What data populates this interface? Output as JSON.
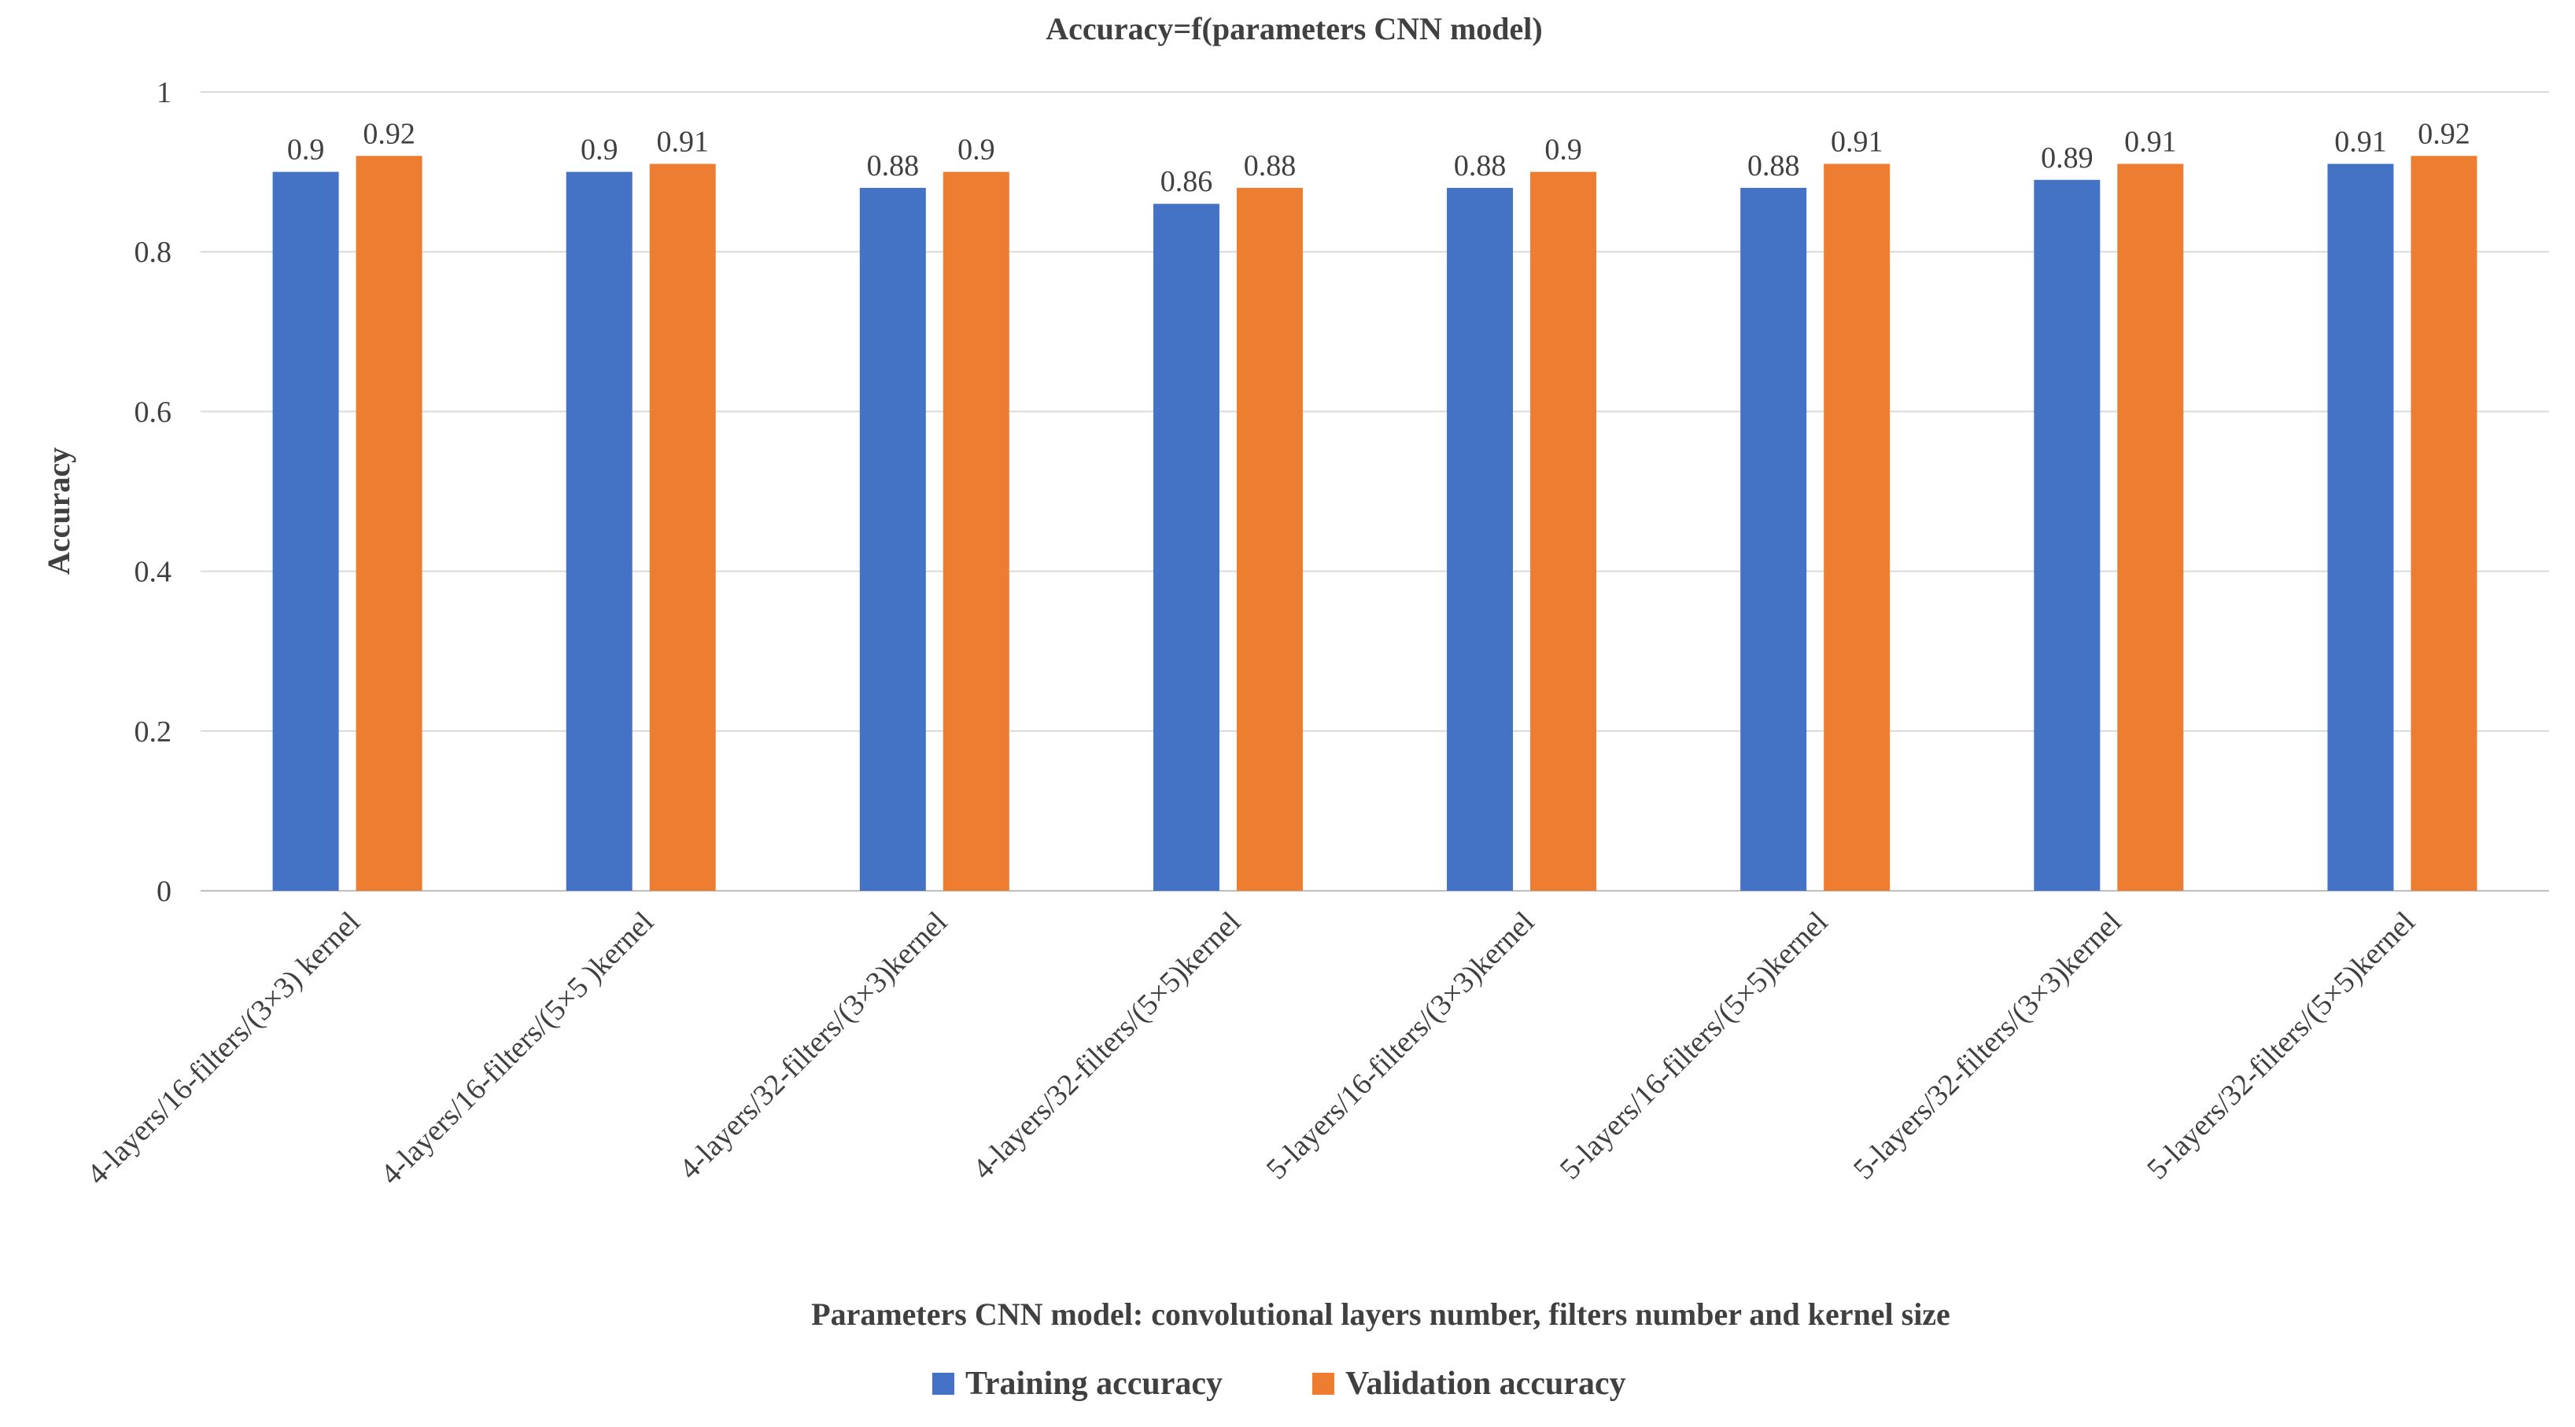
{
  "chart_data": {
    "type": "bar",
    "title": "Accuracy=f(parameters CNN model)",
    "xlabel": "Parameters CNN model: convolutional layers number, filters number and kernel size",
    "ylabel": "Accuracy",
    "ylim": [
      0,
      1
    ],
    "yticks": [
      0,
      0.2,
      0.4,
      0.6,
      0.8,
      1
    ],
    "ytick_labels": [
      "0",
      "0.2",
      "0.4",
      "0.6",
      "0.8",
      "1"
    ],
    "grid": true,
    "legend_position": "bottom",
    "categories": [
      "4-layers/16-filters/(3×3) kernel",
      "4-layers/16-filters/(5×5 )kernel",
      "4-layers/32-filters/(3×3)kernel",
      "4-layers/32-filters/(5×5)kernel",
      "5-layers/16-filters/(3×3)kernel",
      "5-layers/16-filters/(5×5)kernel",
      "5-layers/32-filters/(3×3)kernel",
      "5-layers/32-filters/(5×5)kernel"
    ],
    "series": [
      {
        "name": "Training accuracy",
        "color": "#4472C4",
        "values": [
          0.9,
          0.9,
          0.88,
          0.86,
          0.88,
          0.88,
          0.89,
          0.91
        ],
        "labels": [
          "0.9",
          "0.9",
          "0.88",
          "0.86",
          "0.88",
          "0.88",
          "0.89",
          "0.91"
        ]
      },
      {
        "name": "Validation accuracy",
        "color": "#ED7D31",
        "values": [
          0.92,
          0.91,
          0.9,
          0.88,
          0.9,
          0.91,
          0.91,
          0.92
        ],
        "labels": [
          "0.92",
          "0.91",
          "0.9",
          "0.88",
          "0.9",
          "0.91",
          "0.91",
          "0.92"
        ]
      }
    ]
  }
}
